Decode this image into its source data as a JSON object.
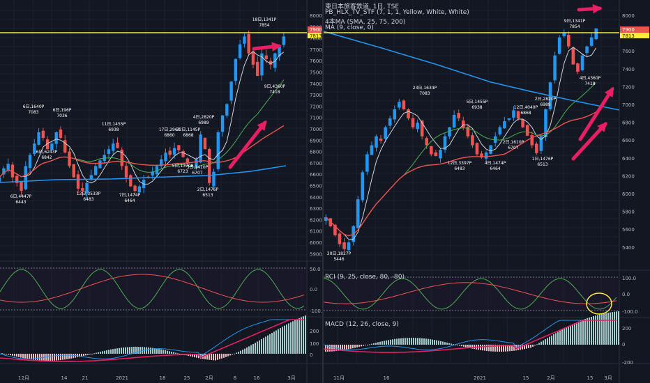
{
  "colors": {
    "background": "#131722",
    "grid": "#1e222d",
    "up_candle": "#2196f3",
    "down_candle": "#ef5350",
    "price_line": "#ffeb3b",
    "sma25": "#d1d4dc",
    "sma75": "#4caf50",
    "sma200": "#ef5350",
    "long_ma": "#2196f3",
    "annotation_arrow": "#e91e63",
    "macd_line": "#2196f3",
    "signal_line": "#e91e63"
  },
  "left_chart": {
    "currency": "JPY",
    "current_price": "7900",
    "current_price_secondary": "7813",
    "price_axis": [
      "8000",
      "7900",
      "7800",
      "7700",
      "7600",
      "7500",
      "7400",
      "7300",
      "7200",
      "7100",
      "7000",
      "6900",
      "6800",
      "6700",
      "6600",
      "6500",
      "6400",
      "6300",
      "6200",
      "6100",
      "6000",
      "5900"
    ],
    "annotations": [
      {
        "value": "7083",
        "date": "6日,1640P"
      },
      {
        "value": "7036",
        "date": "6日,196P"
      },
      {
        "value": "6938",
        "date": "11日,1455P"
      },
      {
        "value": "6860",
        "date": "17日,296P"
      },
      {
        "value": "6868",
        "date": "22日,1145P"
      },
      {
        "value": "6989",
        "date": "4日,2820P"
      },
      {
        "value": "7854",
        "date": "18日,1341P"
      },
      {
        "value": "6842",
        "date": "6日,6243P"
      },
      {
        "value": "6723",
        "date": "5日,1370P"
      },
      {
        "value": "6707",
        "date": "3日,1410P"
      },
      {
        "value": "6483",
        "date": "12日,3533P"
      },
      {
        "value": "6464",
        "date": "7日,1474P"
      },
      {
        "value": "6513",
        "date": "2日,1476P"
      },
      {
        "value": "7418",
        "date": "9日,4360P"
      },
      {
        "value": "6443",
        "date": "6日,4447P"
      }
    ],
    "rci_axis": [
      "50.0",
      "0.0",
      "-100.0"
    ],
    "macd_axis": [
      "200",
      "100",
      "0"
    ],
    "time_axis": [
      "12月",
      "14",
      "21",
      "2021",
      "18",
      "25",
      "2月",
      "8",
      "16",
      "3月"
    ]
  },
  "right_chart": {
    "title": "東日本旅客鉄道, 1日, TSE",
    "indicator1": "PB_HLX_TV_STF (7, 1, 1, Yellow, White, White)",
    "indicator2": "4本MA (SMA, 25, 75, 200)",
    "indicator3": "MA (9, close, 0)",
    "current_price": "7900",
    "current_price_secondary": "7813",
    "price_axis": [
      "8000",
      "7800",
      "7600",
      "7400",
      "7200",
      "7000",
      "6800",
      "6600",
      "6400",
      "6200",
      "6000",
      "5800",
      "5600",
      "5400"
    ],
    "annotations": [
      {
        "value": "7083",
        "date": "23日,1634P"
      },
      {
        "value": "6938",
        "date": "5日,1455P"
      },
      {
        "value": "6868",
        "date": "12日,4040P"
      },
      {
        "value": "6989",
        "date": "2日,2820P"
      },
      {
        "value": "7854",
        "date": "9日,1341P"
      },
      {
        "value": "6483",
        "date": "12日,3397P"
      },
      {
        "value": "6464",
        "date": "4日,1474P"
      },
      {
        "value": "6707",
        "date": "2日,1610P"
      },
      {
        "value": "6513",
        "date": "1日,1476P"
      },
      {
        "value": "7418",
        "date": "4日,4360P"
      },
      {
        "value": "5446",
        "date": "30日,1827P"
      }
    ],
    "rci_label": "RCI (9, 25, close, 80, -80)",
    "rci_axis": [
      "100.0",
      "0.0",
      "-100.0"
    ],
    "macd_label": "MACD (12, 26, close, 9)",
    "macd_axis": [
      "200",
      "0",
      "-200"
    ],
    "time_axis": [
      "11月",
      "16",
      "2021",
      "15",
      "2月",
      "15",
      "3月"
    ]
  }
}
